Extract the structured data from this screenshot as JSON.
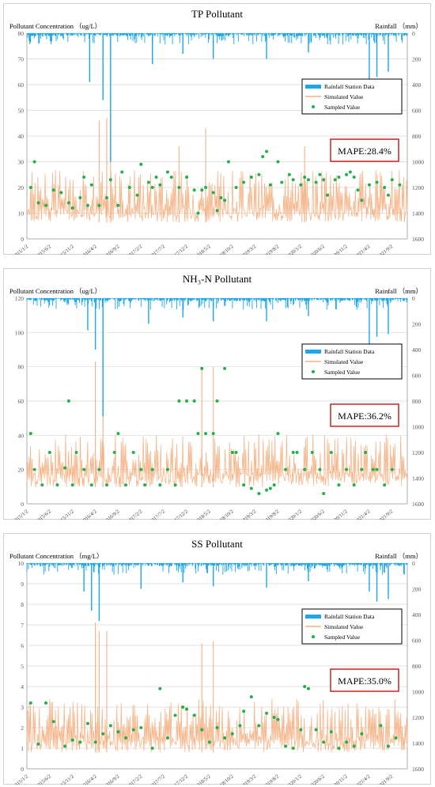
{
  "chart_data": [
    {
      "type": "line",
      "title": "TP Pollutant",
      "ylabel": "Pollutant Concentration （ug/L）",
      "y2label": "Rainfall （mm）",
      "ylim": [
        0,
        80
      ],
      "yticks": [
        0,
        10,
        20,
        30,
        40,
        50,
        60,
        70,
        80
      ],
      "y2lim": [
        0,
        1600
      ],
      "y2ticks": [
        0,
        200,
        400,
        600,
        800,
        1000,
        1200,
        1400,
        1600
      ],
      "y2_inverted": true,
      "xticks": [
        "2015/1/2",
        "2015/6/2",
        "2015/11/2",
        "2016/4/2",
        "2016/9/2",
        "2017/2/2",
        "2017/7/2",
        "2017/12/2",
        "2018/5/2",
        "2018/10/2",
        "2019/3/2",
        "2019/8/2",
        "2020/1/2",
        "2020/6/2",
        "2020/11/2",
        "2021/4/2",
        "2021/9/2"
      ],
      "legend": [
        "Rainfall Station Data",
        "Simulated Value",
        "Sampled Value"
      ],
      "legend_position": "right",
      "mape": "MAPE:28.4%",
      "grid": true,
      "colors": {
        "rain": "#1aa6e8",
        "sim": "#f4b183",
        "sample": "#22b04b"
      },
      "rain_spikes": [
        [
          0.2,
          520
        ],
        [
          0.165,
          380
        ],
        [
          0.22,
          1000
        ],
        [
          0.33,
          240
        ],
        [
          0.49,
          200
        ],
        [
          0.63,
          200
        ],
        [
          0.9,
          470
        ],
        [
          0.92,
          340
        ],
        [
          0.95,
          300
        ],
        [
          0.41,
          160
        ],
        [
          0.74,
          150
        ]
      ],
      "sim_peaks": [
        [
          0.19,
          46
        ],
        [
          0.21,
          47
        ],
        [
          0.22,
          43
        ],
        [
          0.47,
          43
        ],
        [
          0.4,
          36
        ],
        [
          0.73,
          36
        ]
      ],
      "samples": [
        [
          0.01,
          20
        ],
        [
          0.02,
          30
        ],
        [
          0.03,
          14
        ],
        [
          0.05,
          13
        ],
        [
          0.07,
          19
        ],
        [
          0.09,
          18
        ],
        [
          0.11,
          14
        ],
        [
          0.12,
          12
        ],
        [
          0.14,
          16
        ],
        [
          0.15,
          24
        ],
        [
          0.16,
          13
        ],
        [
          0.17,
          21
        ],
        [
          0.19,
          13
        ],
        [
          0.21,
          16
        ],
        [
          0.22,
          23
        ],
        [
          0.24,
          13
        ],
        [
          0.25,
          26
        ],
        [
          0.27,
          20
        ],
        [
          0.29,
          17
        ],
        [
          0.3,
          29
        ],
        [
          0.32,
          22
        ],
        [
          0.33,
          20
        ],
        [
          0.34,
          24
        ],
        [
          0.35,
          21
        ],
        [
          0.37,
          26
        ],
        [
          0.38,
          24
        ],
        [
          0.4,
          20
        ],
        [
          0.42,
          24
        ],
        [
          0.44,
          19
        ],
        [
          0.45,
          10
        ],
        [
          0.46,
          19
        ],
        [
          0.47,
          20
        ],
        [
          0.49,
          18
        ],
        [
          0.5,
          11
        ],
        [
          0.51,
          16
        ],
        [
          0.52,
          15
        ],
        [
          0.53,
          30
        ],
        [
          0.55,
          20
        ],
        [
          0.57,
          22
        ],
        [
          0.59,
          24
        ],
        [
          0.61,
          25
        ],
        [
          0.62,
          32
        ],
        [
          0.63,
          34
        ],
        [
          0.64,
          21
        ],
        [
          0.66,
          30
        ],
        [
          0.67,
          22
        ],
        [
          0.69,
          25
        ],
        [
          0.7,
          23
        ],
        [
          0.72,
          21
        ],
        [
          0.73,
          24
        ],
        [
          0.74,
          23
        ],
        [
          0.76,
          22
        ],
        [
          0.77,
          25
        ],
        [
          0.78,
          23
        ],
        [
          0.79,
          17
        ],
        [
          0.81,
          23
        ],
        [
          0.82,
          24
        ],
        [
          0.84,
          25
        ],
        [
          0.85,
          26
        ],
        [
          0.86,
          24
        ],
        [
          0.87,
          19
        ],
        [
          0.88,
          15
        ],
        [
          0.9,
          21
        ],
        [
          0.92,
          22
        ],
        [
          0.94,
          20
        ],
        [
          0.95,
          17
        ],
        [
          0.96,
          23
        ],
        [
          0.98,
          21
        ]
      ]
    },
    {
      "type": "line",
      "title": "NH₃-N Pollutant",
      "ylabel": "Pollutant Concentration （ug/L）",
      "y2label": "Rainfall （mm）",
      "ylim": [
        0,
        120
      ],
      "yticks": [
        0,
        20,
        40,
        60,
        80,
        100,
        120
      ],
      "y2lim": [
        0,
        1600
      ],
      "y2ticks": [
        0,
        200,
        400,
        600,
        800,
        1000,
        1200,
        1400,
        1600
      ],
      "y2_inverted": true,
      "xticks": [
        "2015/1/2",
        "2015/6/2",
        "2015/11/2",
        "2016/4/2",
        "2016/9/2",
        "2017/2/2",
        "2017/7/2",
        "2017/12/2",
        "2018/5/2",
        "2018/10/2",
        "2019/3/2",
        "2019/8/2",
        "2020/1/2",
        "2020/6/2",
        "2020/11/2",
        "2021/4/2",
        "2021/9/2"
      ],
      "legend": [
        "Rainfall Station Data",
        "Simulated Value",
        "Sampled Value"
      ],
      "legend_position": "right",
      "mape": "MAPE:36.2%",
      "grid": true,
      "colors": {
        "rain": "#1aa6e8",
        "sim": "#f4b183",
        "sample": "#22b04b"
      },
      "rain_spikes": [
        [
          0.18,
          400
        ],
        [
          0.16,
          250
        ],
        [
          0.2,
          920
        ],
        [
          0.32,
          200
        ],
        [
          0.49,
          180
        ],
        [
          0.63,
          180
        ],
        [
          0.9,
          430
        ],
        [
          0.92,
          300
        ],
        [
          0.95,
          280
        ],
        [
          0.41,
          150
        ],
        [
          0.74,
          140
        ]
      ],
      "sim_peaks": [
        [
          0.18,
          83
        ],
        [
          0.2,
          83
        ],
        [
          0.46,
          80
        ],
        [
          0.49,
          80
        ]
      ],
      "samples": [
        [
          0.01,
          41
        ],
        [
          0.02,
          20
        ],
        [
          0.04,
          11
        ],
        [
          0.06,
          30
        ],
        [
          0.08,
          11
        ],
        [
          0.1,
          21
        ],
        [
          0.11,
          60
        ],
        [
          0.12,
          11
        ],
        [
          0.13,
          30
        ],
        [
          0.15,
          20
        ],
        [
          0.17,
          11
        ],
        [
          0.19,
          20
        ],
        [
          0.21,
          11
        ],
        [
          0.23,
          30
        ],
        [
          0.24,
          41
        ],
        [
          0.26,
          11
        ],
        [
          0.28,
          30
        ],
        [
          0.3,
          20
        ],
        [
          0.31,
          11
        ],
        [
          0.33,
          20
        ],
        [
          0.35,
          11
        ],
        [
          0.37,
          20
        ],
        [
          0.39,
          11
        ],
        [
          0.4,
          60
        ],
        [
          0.42,
          60
        ],
        [
          0.44,
          60
        ],
        [
          0.45,
          41
        ],
        [
          0.46,
          79
        ],
        [
          0.47,
          41
        ],
        [
          0.49,
          41
        ],
        [
          0.5,
          60
        ],
        [
          0.52,
          79
        ],
        [
          0.54,
          30
        ],
        [
          0.55,
          30
        ],
        [
          0.57,
          11
        ],
        [
          0.59,
          9
        ],
        [
          0.61,
          6
        ],
        [
          0.63,
          8
        ],
        [
          0.64,
          9
        ],
        [
          0.65,
          11
        ],
        [
          0.66,
          41
        ],
        [
          0.68,
          20
        ],
        [
          0.7,
          30
        ],
        [
          0.71,
          30
        ],
        [
          0.73,
          20
        ],
        [
          0.75,
          30
        ],
        [
          0.77,
          20
        ],
        [
          0.78,
          6
        ],
        [
          0.8,
          30
        ],
        [
          0.82,
          11
        ],
        [
          0.84,
          20
        ],
        [
          0.86,
          11
        ],
        [
          0.88,
          20
        ],
        [
          0.89,
          30
        ],
        [
          0.91,
          20
        ],
        [
          0.92,
          20
        ],
        [
          0.94,
          11
        ],
        [
          0.96,
          20
        ]
      ]
    },
    {
      "type": "line",
      "title": "SS Pollutant",
      "ylabel": "Pollutant Concentration （mg/L）",
      "y2label": "Rainfall （mm）",
      "ylim": [
        0,
        10
      ],
      "yticks": [
        0,
        1,
        2,
        3,
        4,
        5,
        6,
        7,
        8,
        9,
        10
      ],
      "y2lim": [
        0,
        1600
      ],
      "y2ticks": [
        0,
        200,
        400,
        600,
        800,
        1000,
        1200,
        1400,
        1600
      ],
      "y2_inverted": true,
      "xticks": [
        "2015/1/2",
        "2015/6/2",
        "2015/11/2",
        "2016/4/2",
        "2016/9/2",
        "2017/2/2",
        "2017/7/2",
        "2017/12/2",
        "2018/5/2",
        "2018/10/2",
        "2019/3/2",
        "2019/8/2",
        "2020/1/2",
        "2020/6/2",
        "2020/11/2",
        "2021/4/2",
        "2021/9/2"
      ],
      "legend": [
        "Rainfall Station Data",
        "Simulated Value",
        "Sampled Value"
      ],
      "legend_position": "right",
      "mape": "MAPE:35.0%",
      "grid": true,
      "colors": {
        "rain": "#1aa6e8",
        "sim": "#f4b183",
        "sample": "#22b04b"
      },
      "rain_spikes": [
        [
          0.17,
          370
        ],
        [
          0.15,
          220
        ],
        [
          0.19,
          450
        ],
        [
          0.3,
          200
        ],
        [
          0.49,
          180
        ],
        [
          0.63,
          190
        ],
        [
          0.9,
          220
        ],
        [
          0.92,
          300
        ],
        [
          0.95,
          280
        ],
        [
          0.41,
          150
        ],
        [
          0.74,
          140
        ]
      ],
      "sim_peaks": [
        [
          0.18,
          7.1
        ],
        [
          0.19,
          6.7
        ],
        [
          0.21,
          6.7
        ],
        [
          0.46,
          6.1
        ],
        [
          0.49,
          6.2
        ]
      ],
      "samples": [
        [
          0.01,
          3.2
        ],
        [
          0.03,
          1.2
        ],
        [
          0.05,
          3.2
        ],
        [
          0.07,
          2.3
        ],
        [
          0.1,
          1.1
        ],
        [
          0.12,
          1.4
        ],
        [
          0.14,
          1.3
        ],
        [
          0.16,
          2.2
        ],
        [
          0.18,
          1.3
        ],
        [
          0.2,
          1.7
        ],
        [
          0.22,
          2.1
        ],
        [
          0.24,
          1.8
        ],
        [
          0.26,
          1.5
        ],
        [
          0.28,
          1.9
        ],
        [
          0.3,
          2.0
        ],
        [
          0.33,
          1.0
        ],
        [
          0.35,
          3.9
        ],
        [
          0.37,
          1.5
        ],
        [
          0.39,
          2.6
        ],
        [
          0.41,
          3.0
        ],
        [
          0.42,
          2.9
        ],
        [
          0.44,
          2.6
        ],
        [
          0.46,
          1.9
        ],
        [
          0.48,
          1.3
        ],
        [
          0.5,
          2.0
        ],
        [
          0.52,
          1.5
        ],
        [
          0.54,
          1.7
        ],
        [
          0.56,
          2.1
        ],
        [
          0.57,
          2.8
        ],
        [
          0.59,
          3.5
        ],
        [
          0.61,
          2.1
        ],
        [
          0.63,
          2.7
        ],
        [
          0.65,
          2.5
        ],
        [
          0.66,
          2.4
        ],
        [
          0.68,
          1.1
        ],
        [
          0.7,
          1.0
        ],
        [
          0.72,
          1.9
        ],
        [
          0.73,
          4.0
        ],
        [
          0.74,
          3.9
        ],
        [
          0.76,
          1.9
        ],
        [
          0.78,
          1.3
        ],
        [
          0.8,
          1.8
        ],
        [
          0.82,
          1.0
        ],
        [
          0.84,
          1.3
        ],
        [
          0.86,
          1.1
        ],
        [
          0.88,
          1.7
        ],
        [
          0.9,
          4.0
        ],
        [
          0.91,
          4.0
        ],
        [
          0.93,
          2.1
        ],
        [
          0.95,
          1.1
        ],
        [
          0.97,
          1.5
        ]
      ]
    }
  ]
}
